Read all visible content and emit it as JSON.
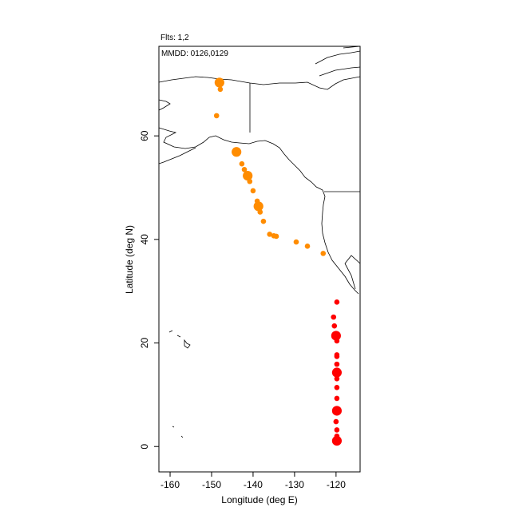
{
  "chart_data": {
    "type": "scatter",
    "title": "Flts: 1,2",
    "subtitle": "MMDD: 0126,0129",
    "x_label": "Longitude (deg E)",
    "y_label": "Latitude (deg N)",
    "xlim": [
      -162.7,
      -114.2
    ],
    "ylim": [
      -4.9,
      77.3
    ],
    "xticks": [
      -160,
      -150,
      -140,
      -130,
      -120
    ],
    "yticks": [
      0,
      20,
      40,
      60
    ],
    "series": [
      {
        "color": "#ff8c00",
        "x": [
          -148.1,
          -147.9,
          -148.8,
          -144.0,
          -142.7,
          -142.1,
          -141.3,
          -140.8,
          -140.0,
          -139.0,
          -138.7,
          -138.3,
          -137.5,
          -136.0,
          -135.0,
          -134.4,
          -129.6,
          -126.9,
          -123.1
        ],
        "values": [
          70.3,
          69.0,
          63.9,
          56.9,
          54.6,
          53.5,
          52.3,
          51.2,
          49.4,
          47.4,
          46.4,
          45.3,
          43.5,
          41.0,
          40.7,
          40.6,
          39.5,
          38.7,
          37.3
        ],
        "sizes": [
          2,
          1,
          1,
          2,
          1,
          1,
          2,
          1,
          1,
          1,
          2,
          1,
          1,
          1,
          1,
          1,
          1,
          1,
          1
        ]
      },
      {
        "color": "#ff0000",
        "x": [
          -119.8,
          -120.6,
          -120.4,
          -120.0,
          -119.8,
          -119.8,
          -119.8,
          -119.8,
          -119.8,
          -119.8,
          -119.8,
          -119.8,
          -119.8,
          -120.0,
          -119.8,
          -119.8,
          -119.8
        ],
        "values": [
          27.9,
          25.0,
          23.3,
          21.4,
          20.4,
          17.7,
          17.4,
          15.9,
          14.3,
          13.1,
          11.4,
          9.3,
          6.9,
          4.8,
          3.2,
          2.0,
          1.1
        ],
        "sizes": [
          1,
          1,
          1,
          2,
          1,
          1,
          1,
          1,
          2,
          1,
          1,
          1,
          2,
          1,
          1,
          1,
          2
        ]
      }
    ]
  }
}
